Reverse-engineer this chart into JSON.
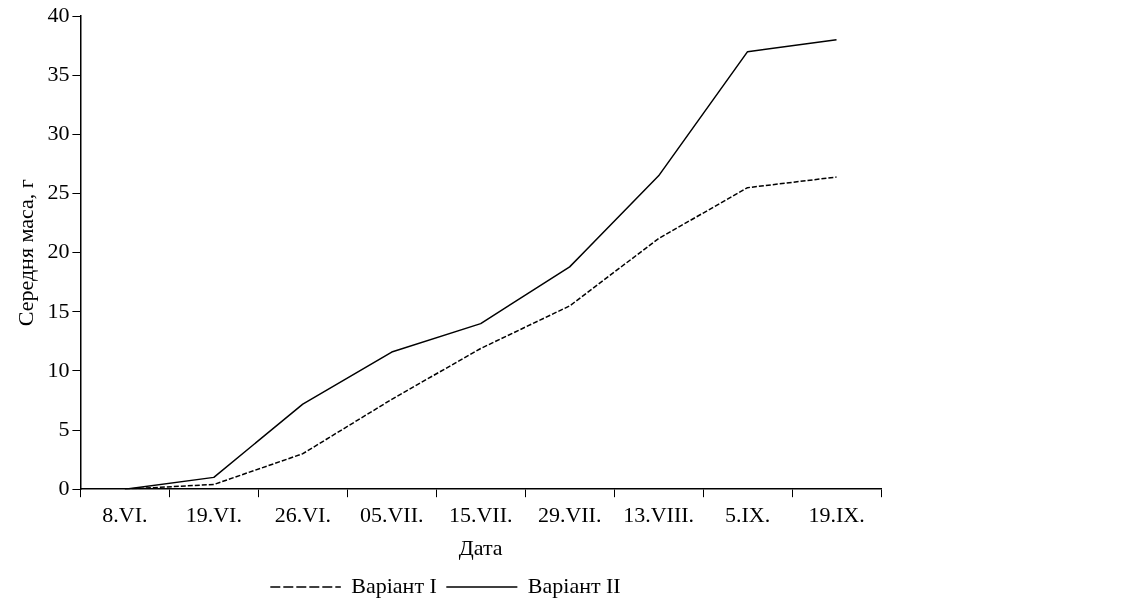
{
  "chart_data": {
    "type": "line",
    "xlabel": "Дата",
    "ylabel": "Середня маса, г",
    "categories": [
      "8.VI.",
      "19.VI.",
      "26.VI.",
      "05.VII.",
      "15.VII.",
      "29.VII.",
      "13.VIII.",
      "5.IX.",
      "19.IX."
    ],
    "series": [
      {
        "name": "Варіант I",
        "color": "#000000",
        "line_style": "dashed",
        "values": [
          0,
          0.4,
          3.0,
          7.6,
          11.9,
          15.5,
          21.2,
          25.5,
          26.4
        ]
      },
      {
        "name": "Варіант II",
        "color": "#000000",
        "line_style": "solid",
        "values": [
          0,
          1.0,
          7.2,
          11.6,
          14.0,
          18.8,
          26.5,
          37.0,
          38.0
        ]
      }
    ],
    "ylim": [
      0,
      40
    ],
    "yticks": [
      0,
      5,
      10,
      15,
      20,
      25,
      30,
      35,
      40
    ],
    "grid": false,
    "legend": "bottom",
    "marker": "none"
  }
}
